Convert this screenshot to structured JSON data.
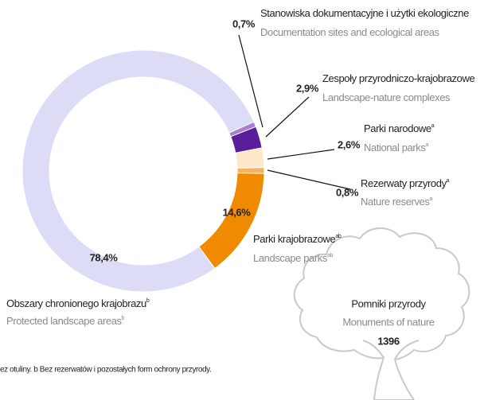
{
  "chart_data": {
    "type": "donut",
    "categories": [
      "Stanowiska dokumentacyjne i użytki ekologiczne",
      "Zespoły przyrodniczo-krajobrazowe",
      "Parki narodowe",
      "Rezerwaty przyrody",
      "Parki krajobrazowe",
      "Obszary chronionego krajobrazu"
    ],
    "categories_en": [
      "Documentation sites and ecological areas",
      "Landscape-nature complexes",
      "National parks",
      "Nature reserves",
      "Landscape parks",
      "Protected landscape areas"
    ],
    "notes": [
      null,
      null,
      "a",
      "a",
      "ab",
      "b"
    ],
    "values": [
      0.7,
      2.9,
      2.6,
      0.8,
      14.6,
      78.4
    ],
    "value_labels": [
      "0,7%",
      "2,9%",
      "2,6%",
      "0,8%",
      "14,6%",
      "78,4%"
    ],
    "colors": [
      "#a77fcb",
      "#5a1e9b",
      "#fde8cb",
      "#f5b361",
      "#f08a00",
      "#dddcf6"
    ],
    "monument": {
      "title": "Pomniki przyrody",
      "title_en": "Monuments of nature",
      "value": "1396"
    },
    "footnote": "ez otuliny. b Bez rezerwatów i pozostałych form ochrony przyrody."
  }
}
